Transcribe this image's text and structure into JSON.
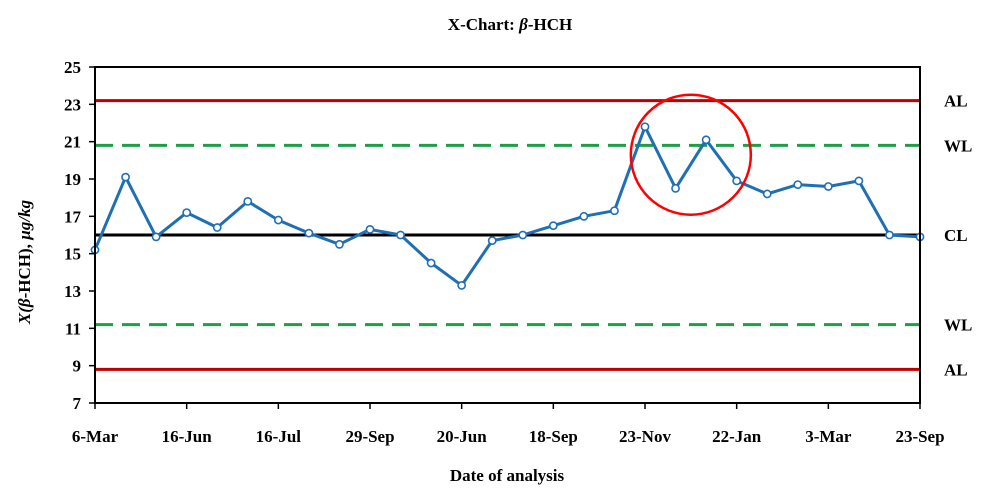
{
  "chart_data": {
    "type": "line",
    "title_prefix": "X-Chart: ",
    "title_symbol": "β",
    "title_suffix": "-HCH",
    "xlabel": "Date of analysis",
    "ylabel_prefix": "X(",
    "ylabel_symbol": "β",
    "ylabel_suffix": "-HCH), ",
    "ylabel_unit": "µg/kg",
    "ylim": [
      7,
      25
    ],
    "yticks": [
      7,
      9,
      11,
      13,
      15,
      17,
      19,
      21,
      23,
      25
    ],
    "xtick_labels": [
      "6-Mar",
      "16-Jun",
      "16-Jul",
      "29-Sep",
      "20-Jun",
      "18-Sep",
      "23-Nov",
      "22-Jan",
      "3-Mar",
      "23-Sep"
    ],
    "series": [
      {
        "color": "#1f6fb5",
        "values": [
          15.2,
          19.1,
          15.9,
          17.2,
          16.4,
          17.8,
          16.8,
          16.1,
          15.5,
          16.3,
          16.0,
          14.5,
          13.3,
          15.7,
          16.0,
          16.5,
          17.0,
          17.3,
          21.8,
          18.5,
          21.1,
          18.9,
          18.2,
          18.7,
          18.6,
          18.9,
          16.0,
          15.9
        ]
      }
    ],
    "control_lines": [
      {
        "label": "AL",
        "value": 23.2,
        "color": "#c00000",
        "style": "solid"
      },
      {
        "label": "WL",
        "value": 20.8,
        "color": "#1e9e46",
        "style": "dashed"
      },
      {
        "label": "CL",
        "value": 16.0,
        "color": "#000000",
        "style": "solid"
      },
      {
        "label": "WL",
        "value": 11.2,
        "color": "#1e9e46",
        "style": "dashed"
      },
      {
        "label": "AL",
        "value": 8.8,
        "color": "#c00000",
        "style": "solid"
      }
    ],
    "highlight": {
      "type": "circle",
      "color": "#ff0000",
      "center_index": 19.5,
      "center_value": 20.3
    },
    "grid": false,
    "legend": "none"
  }
}
